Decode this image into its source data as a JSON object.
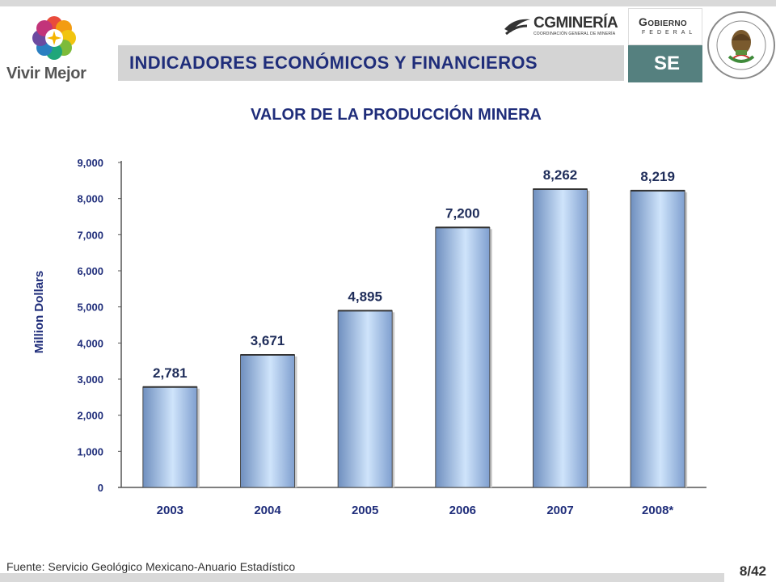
{
  "header": {
    "title": "INDICADORES ECONÓMICOS Y FINANCIEROS",
    "logo_left_text": "Vivir Mejor",
    "cgm_name": "CGMINERÍA",
    "cgm_sub": "COORDINACIÓN GENERAL DE MINERÍA",
    "gob_line1": "Gobierno",
    "gob_line2": "FEDERAL",
    "se_label": "SE"
  },
  "chart_data": {
    "type": "bar",
    "title": "VALOR DE LA PRODUCCIÓN MINERA",
    "ylabel": "Million Dollars",
    "xlabel": "",
    "categories": [
      "2003",
      "2004",
      "2005",
      "2006",
      "2007",
      "2008*"
    ],
    "values": [
      2781,
      3671,
      4895,
      7200,
      8262,
      8219
    ],
    "value_labels": [
      "2,781",
      "3,671",
      "4,895",
      "7,200",
      "8,262",
      "8,219"
    ],
    "ylim": [
      0,
      9000
    ],
    "yticks": [
      0,
      1000,
      2000,
      3000,
      4000,
      5000,
      6000,
      7000,
      8000,
      9000
    ],
    "ytick_labels": [
      "0",
      "1,000",
      "2,000",
      "3,000",
      "4,000",
      "5,000",
      "6,000",
      "7,000",
      "8,000",
      "9,000"
    ],
    "grid": false,
    "colors": {
      "bar_dark": "#6f8fbf",
      "bar_light": "#cfe4fb",
      "text": "#1f2d7a"
    }
  },
  "footer": {
    "source": "Fuente: Servicio Geológico Mexicano-Anuario Estadístico",
    "page": "8/42"
  }
}
